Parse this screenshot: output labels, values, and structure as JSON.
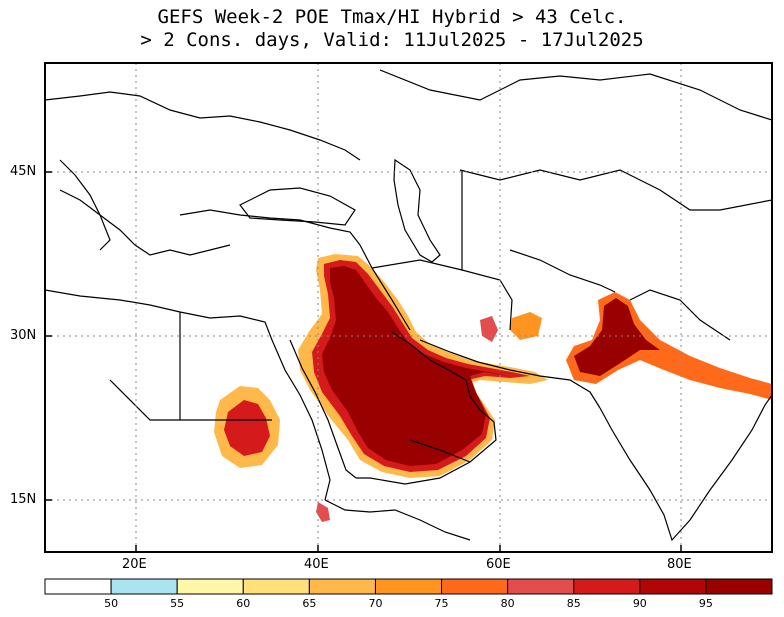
{
  "title": {
    "line1": "GEFS Week-2 POE Tmax/HI Hybrid > 43 Celc.",
    "line2": "> 2 Cons. days, Valid: 11Jul2025 - 17Jul2025"
  },
  "map": {
    "lon_range": [
      10,
      90
    ],
    "lat_range": [
      10,
      55
    ],
    "lat_ticks": [
      {
        "value": 45,
        "label": "45N"
      },
      {
        "value": 30,
        "label": "30N"
      },
      {
        "value": 15,
        "label": "15N"
      }
    ],
    "lon_ticks": [
      {
        "value": 20,
        "label": "20E"
      },
      {
        "value": 40,
        "label": "40E"
      },
      {
        "value": 60,
        "label": "60E"
      },
      {
        "value": 80,
        "label": "80E"
      }
    ],
    "grid": true
  },
  "colorbar": {
    "levels": [
      "50",
      "55",
      "60",
      "65",
      "70",
      "75",
      "80",
      "85",
      "90",
      "95"
    ],
    "colors": [
      "#ffffff",
      "#a9e4f0",
      "#fff6a8",
      "#ffe07a",
      "#ffb94a",
      "#ff9520",
      "#ff6a1a",
      "#e44d4d",
      "#d41a1a",
      "#b00606",
      "#990000"
    ]
  }
}
